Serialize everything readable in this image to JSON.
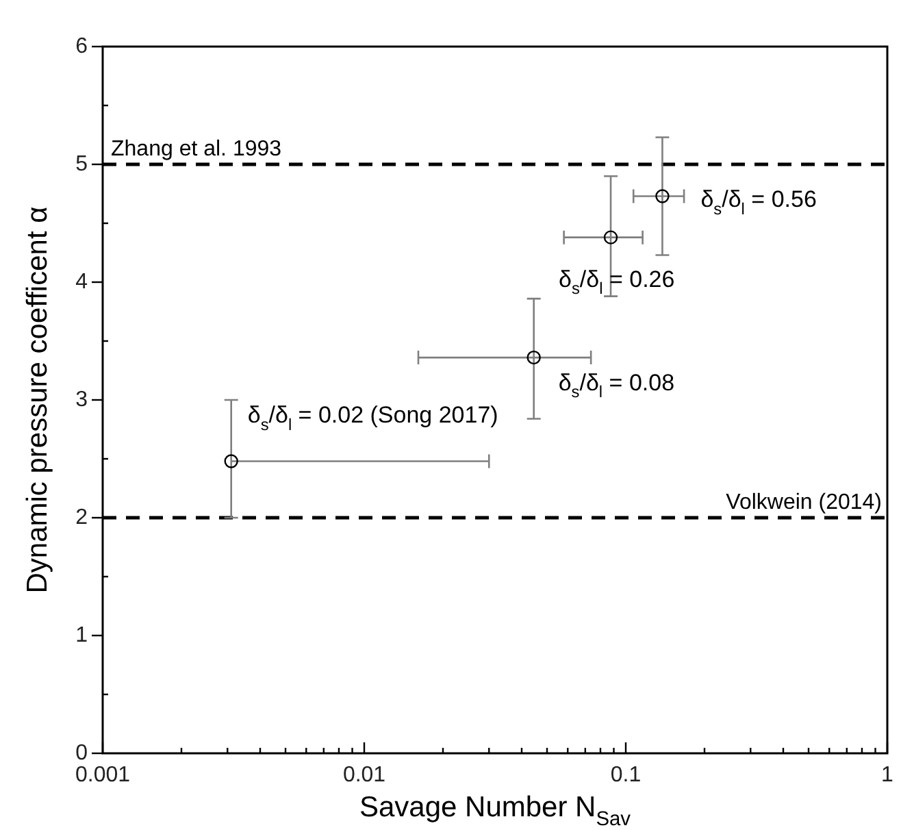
{
  "chart_data": {
    "type": "scatter",
    "xlabel": "Savage Number N$_{Sav}$",
    "ylabel": "Dynamic pressure coefficent α",
    "log": "x",
    "grid": false,
    "legend": false,
    "marker": "circle",
    "xlim": [
      0.001,
      1
    ],
    "xticks": [
      0.001,
      {
        "value": 0.002,
        "label": null
      },
      {
        "value": 0.003,
        "label": null
      },
      {
        "value": 0.004,
        "label": null
      },
      {
        "value": 0.005,
        "label": null
      },
      {
        "value": 0.006,
        "label": null
      },
      {
        "value": 0.007,
        "label": null
      },
      {
        "value": 0.008,
        "label": null
      },
      {
        "value": 0.009,
        "label": null
      },
      0.01,
      {
        "value": 0.02,
        "label": null
      },
      {
        "value": 0.03,
        "label": null
      },
      {
        "value": 0.04,
        "label": null
      },
      {
        "value": 0.05,
        "label": null
      },
      {
        "value": 0.06,
        "label": null
      },
      {
        "value": 0.07,
        "label": null
      },
      {
        "value": 0.08,
        "label": null
      },
      {
        "value": 0.09,
        "label": null
      },
      0.1,
      {
        "value": 0.2,
        "label": null
      },
      {
        "value": 0.3,
        "label": null
      },
      {
        "value": 0.4,
        "label": null
      },
      {
        "value": 0.5,
        "label": null
      },
      {
        "value": 0.6,
        "label": null
      },
      {
        "value": 0.7,
        "label": null
      },
      {
        "value": 0.8,
        "label": null
      },
      {
        "value": 0.9,
        "label": null
      },
      1
    ],
    "ylim": [
      0,
      6
    ],
    "yticks": [
      0,
      {
        "value": 0.5,
        "label": null
      },
      1,
      {
        "value": 1.5,
        "label": null
      },
      2,
      {
        "value": 2.5,
        "label": null
      },
      3,
      {
        "value": 3.5,
        "label": null
      },
      4,
      {
        "value": 4.5,
        "label": null
      },
      5,
      {
        "value": 5.5,
        "label": null
      },
      6
    ],
    "series": [
      {
        "color": "#000000",
        "x": [
          0.0031,
          0.0445,
          0.0876,
          0.138
        ],
        "values": [
          2.48,
          3.36,
          4.38,
          4.73
        ],
        "errors": [
          [
            2.0,
            3.0
          ],
          [
            2.84,
            3.86
          ],
          [
            3.88,
            4.9
          ],
          [
            4.23,
            5.23
          ]
        ],
        "xerrors": [
          [
            0.0031,
            0.03
          ],
          [
            0.0161,
            0.0736
          ],
          [
            0.058,
            0.116
          ],
          [
            0.107,
            0.167
          ]
        ]
      }
    ],
    "annotations": [
      {
        "text": "δ$_{s}$/δ$_{l}$ = 0.02 (Song 2017)",
        "x": 0.0031,
        "y": 2.48
      },
      {
        "text": "δ$_{s}$/δ$_{l}$ = 0.08",
        "x": 0.0445,
        "y": 3.36
      },
      {
        "text": "δ$_{s}$/δ$_{l}$ = 0.26",
        "x": 0.0876,
        "y": 4.38
      },
      {
        "text": "δ$_{s}$/δ$_{l}$ = 0.56",
        "x": 0.138,
        "y": 4.73
      }
    ],
    "ref_lines": [
      {
        "axis": "y",
        "value": 5,
        "label": "Zhang et al. 1993",
        "line_style": "dashed",
        "color": "#000000"
      },
      {
        "axis": "y",
        "value": 2,
        "label": "Volkwein (2014)",
        "line_style": "dashed",
        "color": "#000000"
      }
    ]
  }
}
